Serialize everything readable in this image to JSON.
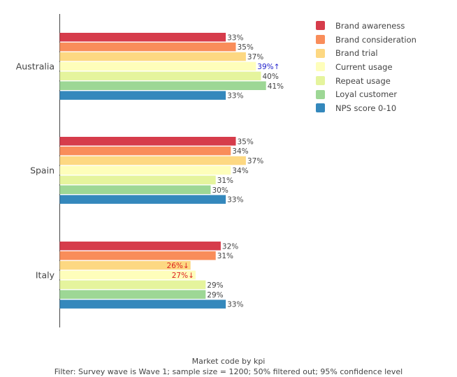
{
  "chart_data": {
    "type": "bar",
    "orientation": "horizontal",
    "categories": [
      "Australia",
      "Spain",
      "Italy"
    ],
    "series": [
      {
        "name": "Brand awareness",
        "color": "#d63c4b",
        "values": [
          33,
          35,
          32
        ]
      },
      {
        "name": "Brand consideration",
        "color": "#f98d5a",
        "values": [
          35,
          34,
          31
        ]
      },
      {
        "name": "Brand trial",
        "color": "#fdd882",
        "values": [
          37,
          37,
          26
        ]
      },
      {
        "name": "Current usage",
        "color": "#fefebb",
        "values": [
          39,
          34,
          27
        ]
      },
      {
        "name": "Repeat usage",
        "color": "#e5f49d",
        "values": [
          40,
          31,
          29
        ]
      },
      {
        "name": "Loyal customer",
        "color": "#9dd795",
        "values": [
          41,
          30,
          29
        ]
      },
      {
        "name": "NPS score 0-10",
        "color": "#3488bc",
        "values": [
          33,
          33,
          33
        ]
      }
    ],
    "value_labels": [
      [
        "33%",
        "35%",
        "37%",
        "39%↑",
        "40%",
        "41%",
        "33%"
      ],
      [
        "35%",
        "34%",
        "37%",
        "34%",
        "31%",
        "30%",
        "33%"
      ],
      [
        "32%",
        "31%",
        "26%↓",
        "27%↓",
        "29%",
        "29%",
        "33%"
      ]
    ],
    "significance": {
      "up_color": "#2222cc",
      "down_color": "#dd2222",
      "marks": [
        {
          "category": "Australia",
          "series": "Current usage",
          "direction": "up"
        },
        {
          "category": "Italy",
          "series": "Brand trial",
          "direction": "down"
        },
        {
          "category": "Italy",
          "series": "Current usage",
          "direction": "down"
        }
      ]
    },
    "xlim": [
      0,
      60
    ],
    "grid": false,
    "legend_position": "top-right",
    "title": "Market code by kpi",
    "filter_note": "Filter: Survey wave is Wave 1; sample size = 1200; 50% filtered out; 95% confidence level"
  }
}
